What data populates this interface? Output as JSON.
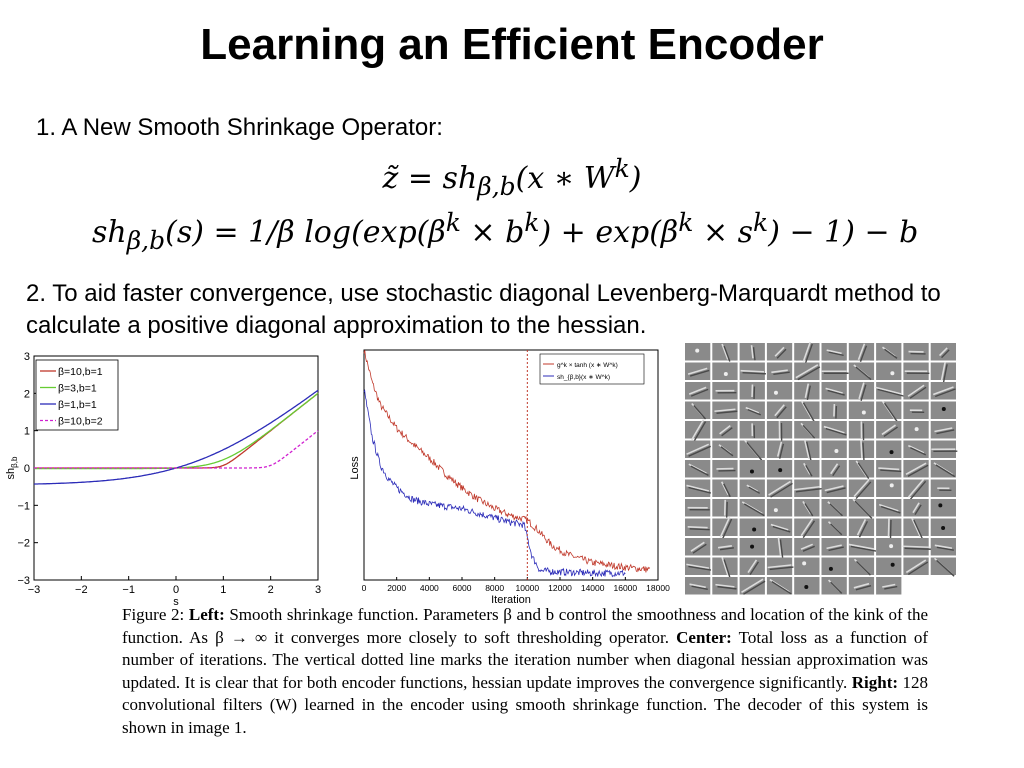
{
  "slide": {
    "title": "Learning an Efficient Encoder",
    "bullet1": "1. A New Smooth Shrinkage Operator:",
    "eq1": "z̃ = sh<sub>β,b</sub>(x ∗ W<sup>k</sup>)",
    "eq2": "sh<sub>β,b</sub>(s) = 1/β log(exp(β<sup>k</sup> × b<sup>k</sup>) + exp(β<sup>k</sup> × s<sup>k</sup>) − 1) − b",
    "bullet2": "2. To aid faster convergence, use stochastic diagonal Levenberg-Marquardt method to calculate a positive diagonal approximation to the hessian."
  },
  "caption": {
    "fig": "Figure 2:",
    "left_label": "Left:",
    "left_text": " Smooth shrinkage function. Parameters β and b control the smoothness and location of the kink of the function. As β → ∞ it converges more closely to soft thresholding operator. ",
    "center_label": "Center:",
    "center_text": " Total loss as a function of number of iterations. The vertical dotted line marks the iteration number when diagonal hessian approximation was updated. It is clear that for both encoder functions, hessian update improves the convergence significantly. ",
    "right_label": "Right:",
    "right_text": " 128 convolutional filters (W) learned in the encoder using smooth shrinkage function. The decoder of this system is shown in image 1."
  },
  "chart_data": [
    {
      "type": "line",
      "xlabel": "s",
      "ylabel": "sh_{β,b}",
      "xlim": [
        -3,
        3
      ],
      "ylim": [
        -3,
        3
      ],
      "x_ticks": [
        "−3",
        "−2",
        "−1",
        "0",
        "1",
        "2",
        "3"
      ],
      "y_ticks": [
        "3",
        "2",
        "1",
        "0",
        "−1",
        "−2",
        "−3"
      ],
      "legend": "top-left",
      "series": [
        {
          "name": "β=10,b=1",
          "color": "#c0392b",
          "beta": 10,
          "b": 1
        },
        {
          "name": "β=3,b=1",
          "color": "#66cc33",
          "beta": 3,
          "b": 1
        },
        {
          "name": "β=1,b=1",
          "color": "#2c2cb8",
          "beta": 1,
          "b": 1
        },
        {
          "name": "β=10,b=2",
          "color": "#d020d0",
          "beta": 10,
          "b": 2,
          "dashed": true
        }
      ]
    },
    {
      "type": "line",
      "xlabel": "Iteration",
      "ylabel": "Loss",
      "xlim": [
        0,
        18000
      ],
      "x_ticks": [
        "0",
        "2000",
        "4000",
        "6000",
        "8000",
        "10000",
        "12000",
        "14000",
        "16000",
        "18000"
      ],
      "legend": "top-right",
      "vline_x": 10000,
      "series": [
        {
          "name": "g^k × tanh (x ∗ W^k)",
          "color": "#c0392b",
          "x": [
            0,
            500,
            1000,
            2000,
            3000,
            4000,
            5000,
            6000,
            7000,
            8000,
            9000,
            10000,
            10600,
            11500,
            12500,
            14000,
            16000,
            17500
          ],
          "y": [
            1.0,
            0.86,
            0.76,
            0.66,
            0.59,
            0.53,
            0.46,
            0.4,
            0.35,
            0.31,
            0.28,
            0.26,
            0.22,
            0.15,
            0.11,
            0.075,
            0.055,
            0.045
          ]
        },
        {
          "name": "sh_{β,b}(x ∗ W^k)",
          "color": "#2c2cb8",
          "x": [
            0,
            500,
            1000,
            1500,
            2000,
            3000,
            4000,
            5000,
            6000,
            7000,
            8000,
            9000,
            9800,
            10300,
            10800,
            12000,
            14000,
            16000
          ],
          "y": [
            0.83,
            0.62,
            0.5,
            0.44,
            0.4,
            0.35,
            0.33,
            0.32,
            0.31,
            0.29,
            0.27,
            0.25,
            0.24,
            0.1,
            0.04,
            0.035,
            0.03,
            0.03
          ]
        }
      ]
    }
  ]
}
